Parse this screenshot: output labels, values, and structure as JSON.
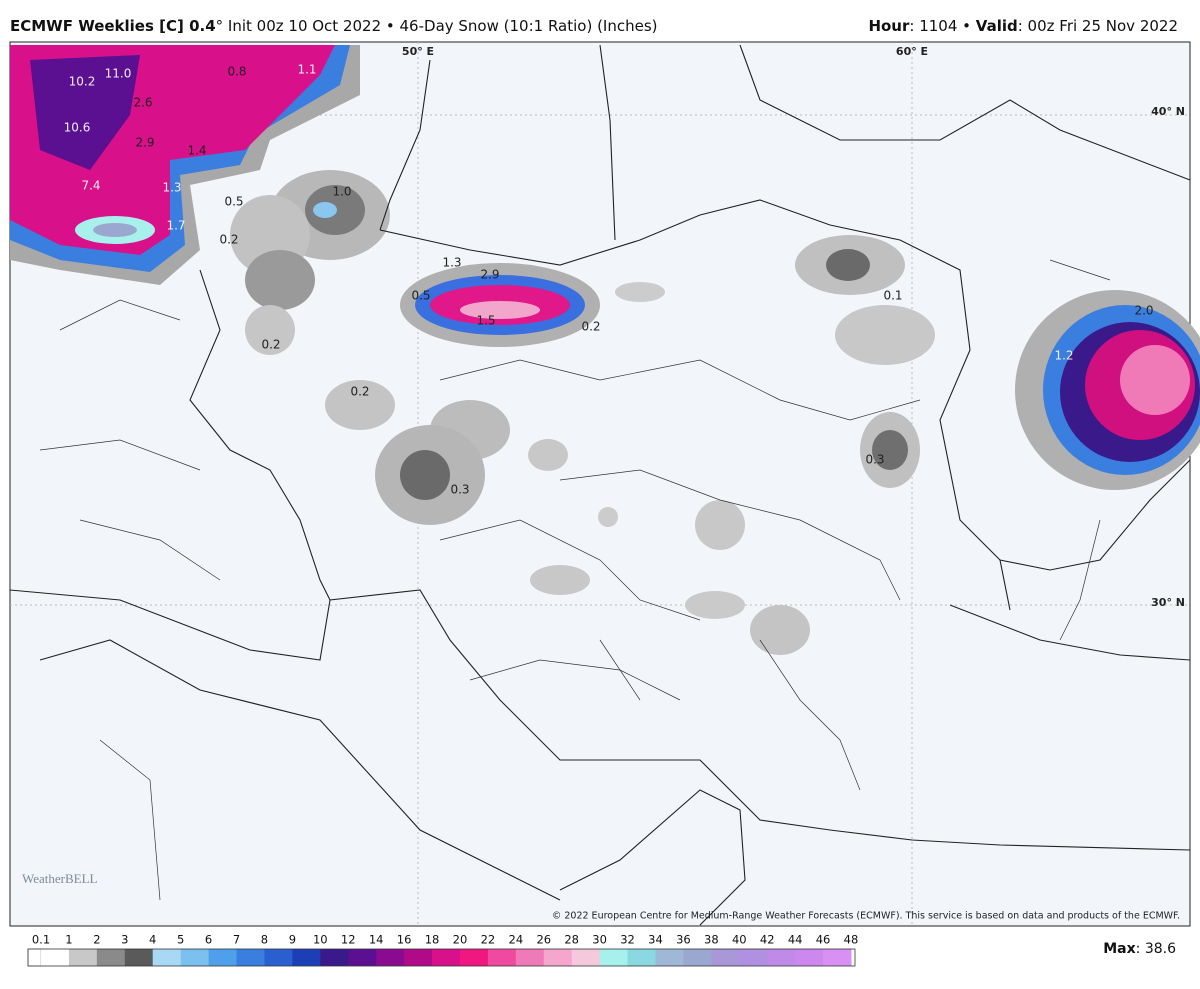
{
  "header": {
    "title_bold": "ECMWF Weeklies [C] 0.4",
    "title_rest": "° Init 00z 10 Oct 2022 • 46-Day Snow (10:1 Ratio) (Inches)",
    "hour_label": "Hour",
    "hour_value": ": 1104 •",
    "valid_label": "Valid",
    "valid_value": ": 00z Fri 25 Nov 2022"
  },
  "map": {
    "grid_labels": [
      "50° E",
      "60° E",
      "40° N",
      "30° N"
    ],
    "snow_labels": [
      "10.2",
      "11.0",
      "0.8",
      "1.1",
      "2.6",
      "10.6",
      "2.9",
      "1.4",
      "7.4",
      "1.3",
      "0.5",
      "1.0",
      "1.7",
      "0.2",
      "1.3",
      "2.9",
      "0.5",
      "1.5",
      "0.2",
      "0.1",
      "2.0",
      "1.2",
      "0.2",
      "0.2",
      "0.3",
      "0.3"
    ],
    "logo": "WeatherBELL",
    "copyright": "© 2022 European Centre for Medium-Range Weather Forecasts (ECMWF). This service is based on data and products of the ECMWF."
  },
  "legend": {
    "ticks": [
      "0.1",
      "1",
      "2",
      "3",
      "4",
      "5",
      "6",
      "7",
      "8",
      "9",
      "10",
      "12",
      "14",
      "16",
      "18",
      "20",
      "22",
      "24",
      "26",
      "28",
      "30",
      "32",
      "34",
      "36",
      "38",
      "40",
      "42",
      "44",
      "46",
      "48"
    ],
    "colors": [
      "#ffffff",
      "#c8c8c8",
      "#8a8a8a",
      "#5a5a5a",
      "#a9d8f5",
      "#7cc0f0",
      "#4fa0ea",
      "#3a7fe0",
      "#2a5fd0",
      "#1c3fb8",
      "#3a1a8a",
      "#5a1090",
      "#8a0a90",
      "#b00a88",
      "#d8108a",
      "#f01880",
      "#f04aa0",
      "#f07ab8",
      "#f4a6cc",
      "#f6c8dc",
      "#a8f0ec",
      "#8ad8e0",
      "#a0b8d8",
      "#9aa8d0",
      "#a898d8",
      "#b090e0",
      "#c08ae8",
      "#cc88ee",
      "#d890f4"
    ],
    "max_label": "Max",
    "max_value": ": 38.6"
  }
}
